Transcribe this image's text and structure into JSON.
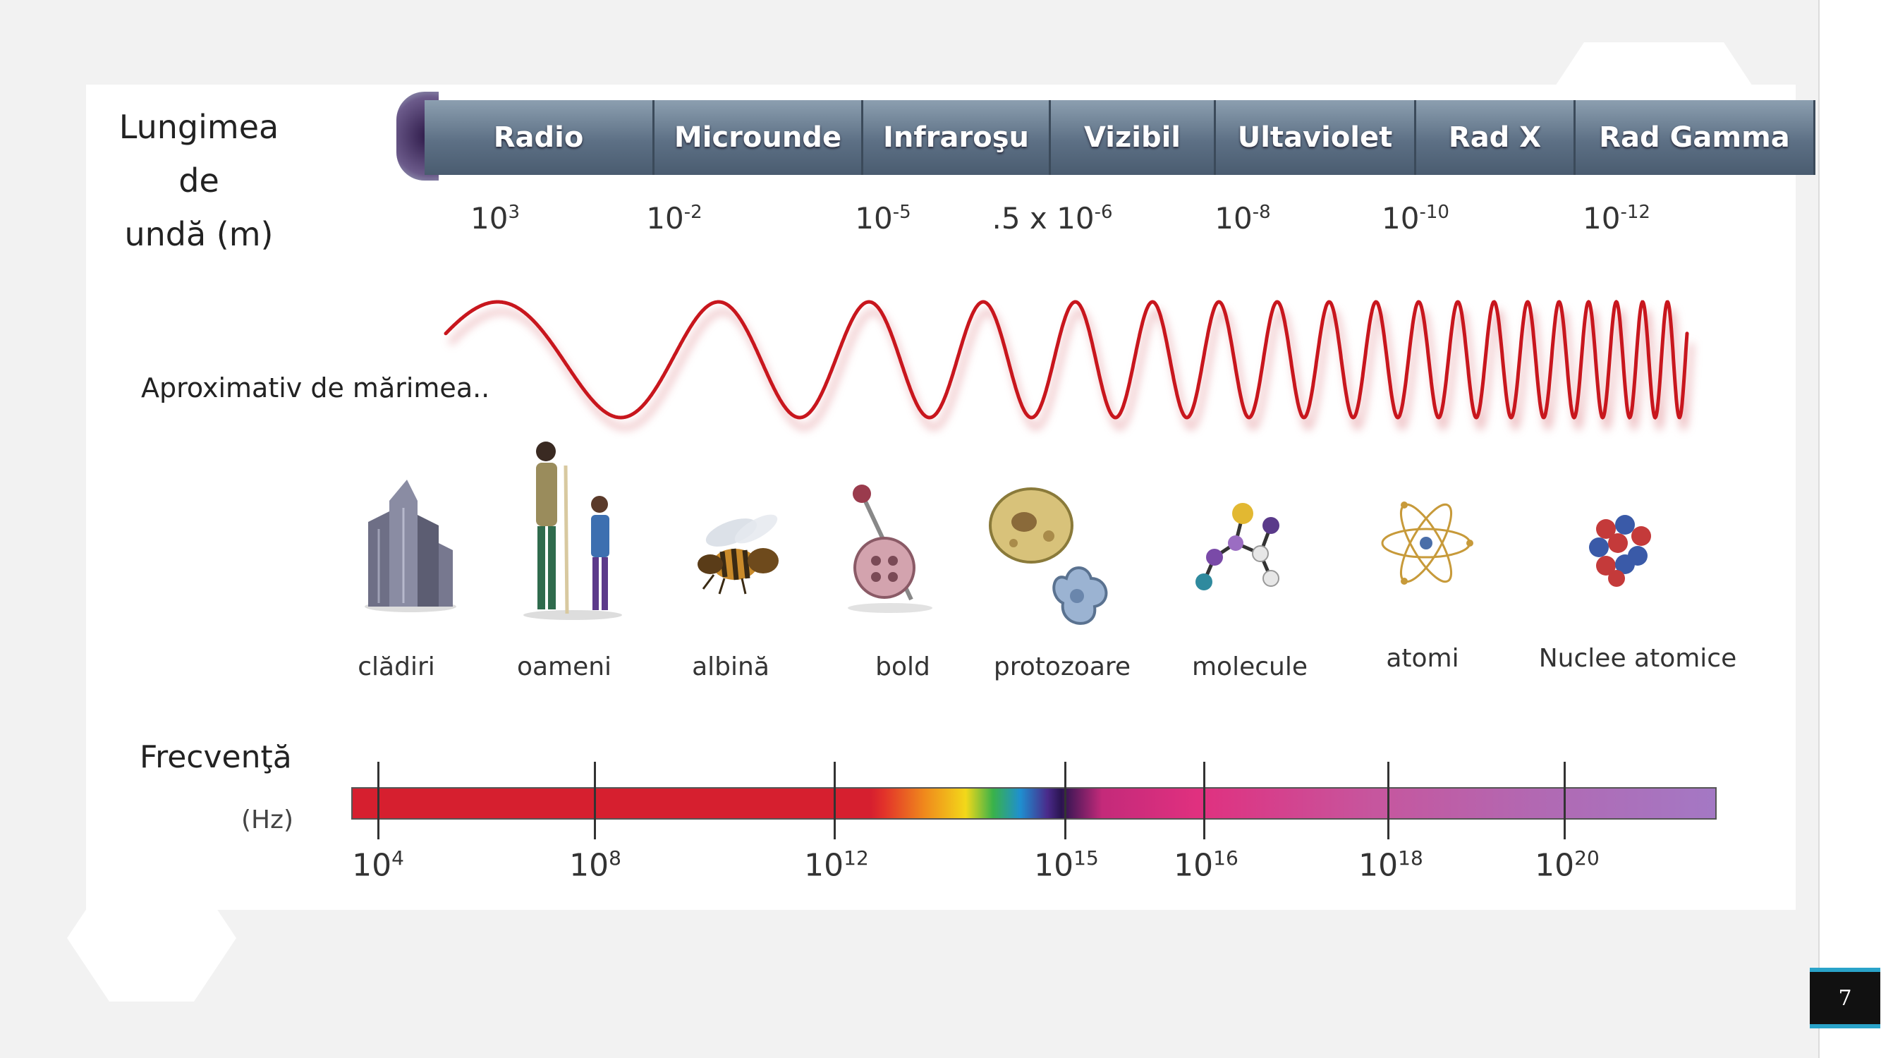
{
  "slide": {
    "page_number": "7"
  },
  "wavelength": {
    "title_line1": "Lungimea de",
    "title_line2": "undă (m)",
    "bands": [
      {
        "name": "Radio",
        "base": "10",
        "exp": "3"
      },
      {
        "name": "Microunde",
        "base": "10",
        "exp": "-2"
      },
      {
        "name": "Infraroşu",
        "base": "10",
        "exp": "-5"
      },
      {
        "name": "Vizibil",
        "base": ".5 x 10",
        "exp": "-6"
      },
      {
        "name": "Ultaviolet",
        "base": "10",
        "exp": "-8"
      },
      {
        "name": "Rad  X",
        "base": "10",
        "exp": "-10"
      },
      {
        "name": "Rad  Gamma",
        "base": "10",
        "exp": "-12"
      }
    ]
  },
  "size": {
    "title": "Aproximativ de mărimea..",
    "objects": [
      {
        "label": "clădiri",
        "icon": "buildings-icon"
      },
      {
        "label": "oameni",
        "icon": "people-icon"
      },
      {
        "label": "albină",
        "icon": "bee-icon"
      },
      {
        "label": "bold",
        "icon": "pin-icon"
      },
      {
        "label": "protozoare",
        "icon": "protozoa-icon"
      },
      {
        "label": "molecule",
        "icon": "molecule-icon"
      },
      {
        "label": "atomi",
        "icon": "atom-icon"
      },
      {
        "label": "Nuclee atomice",
        "icon": "nucleus-icon"
      }
    ]
  },
  "frequency": {
    "title": "Frecvenţă",
    "unit": "(Hz)",
    "ticks": [
      {
        "base": "10",
        "exp": "4"
      },
      {
        "base": "10",
        "exp": "8"
      },
      {
        "base": "10",
        "exp": "12"
      },
      {
        "base": "10",
        "exp": "15"
      },
      {
        "base": "10",
        "exp": "16"
      },
      {
        "base": "10",
        "exp": "18"
      },
      {
        "base": "10",
        "exp": "20"
      }
    ]
  },
  "colors": {
    "wave": "#c8161d",
    "band": "#5d7085",
    "spectrum_start": "#d61f2f",
    "spectrum_end": "#a478c4"
  }
}
